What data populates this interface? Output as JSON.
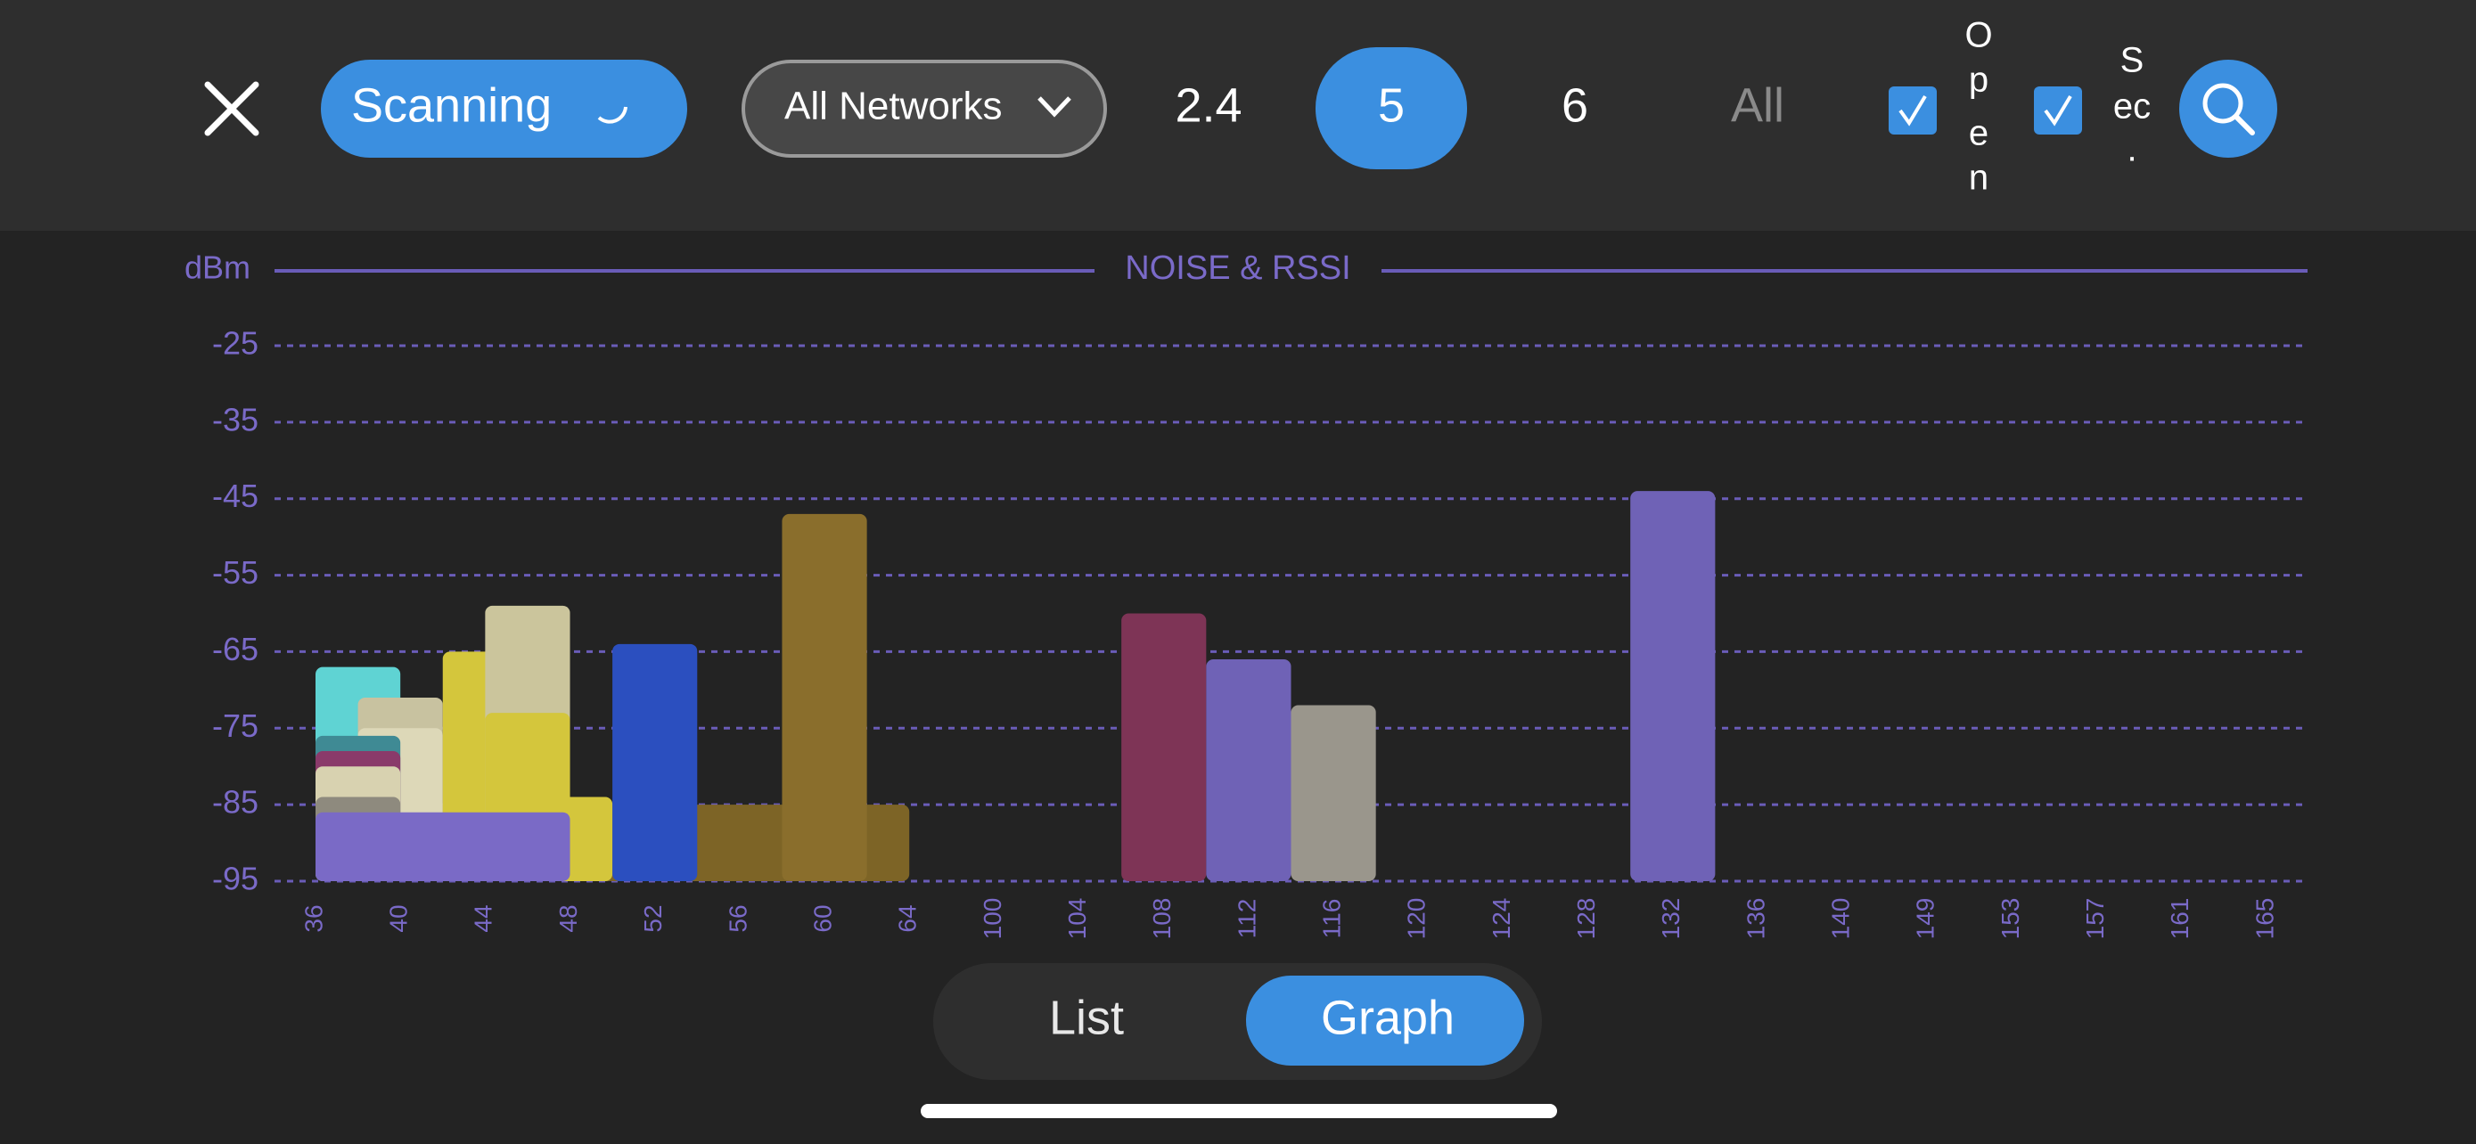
{
  "header": {
    "scan_button": "Scanning",
    "network_filter": "All Networks",
    "bands": [
      "2.4",
      "5",
      "6",
      "All"
    ],
    "open_label_lines": [
      "O",
      "p",
      "e",
      "n"
    ],
    "sec_label_lines": [
      "S",
      "ec",
      "."
    ]
  },
  "chart_data": {
    "type": "bar",
    "title": "NOISE & RSSI",
    "y_label": "dBm",
    "categories": [
      36,
      40,
      44,
      48,
      52,
      56,
      60,
      64,
      100,
      104,
      108,
      112,
      116,
      120,
      124,
      128,
      132,
      136,
      140,
      149,
      153,
      157,
      161,
      165
    ],
    "ylim": [
      -95,
      -25
    ],
    "yticks": [
      -25,
      -35,
      -45,
      -55,
      -65,
      -75,
      -85,
      -95
    ],
    "grid": true,
    "series": [
      {
        "color": "#7d6426",
        "start": 36,
        "end": 64,
        "value": -85
      },
      {
        "color": "#5fd3d3",
        "start": 36,
        "end": 40,
        "value": -67
      },
      {
        "color": "#c8c2a0",
        "start": 38,
        "end": 42,
        "value": -71
      },
      {
        "color": "#ddd8b8",
        "start": 38,
        "end": 42,
        "value": -75
      },
      {
        "color": "#3f8a94",
        "start": 36,
        "end": 40,
        "value": -76
      },
      {
        "color": "#8a3a6a",
        "start": 36,
        "end": 40,
        "value": -78
      },
      {
        "color": "#d8d2b0",
        "start": 36,
        "end": 40,
        "value": -80
      },
      {
        "color": "#8e8a7e",
        "start": 36,
        "end": 40,
        "value": -84
      },
      {
        "color": "#d4c63c",
        "start": 42,
        "end": 46,
        "value": -65
      },
      {
        "color": "#cbc59c",
        "start": 44,
        "end": 48,
        "value": -59
      },
      {
        "color": "#d4c63c",
        "start": 44,
        "end": 48,
        "value": -73
      },
      {
        "color": "#d4c63c",
        "start": 46,
        "end": 50,
        "value": -84
      },
      {
        "color": "#2b4fbf",
        "start": 50,
        "end": 54,
        "value": -64
      },
      {
        "color": "#8a6e2c",
        "start": 58,
        "end": 62,
        "value": -47
      },
      {
        "color": "#7a6ac6",
        "start": 36,
        "end": 48,
        "value": -86
      },
      {
        "color": "#7e3456",
        "start": 106,
        "end": 110,
        "value": -60
      },
      {
        "color": "#6f62b6",
        "start": 110,
        "end": 114,
        "value": -66
      },
      {
        "color": "#9a968c",
        "start": 114,
        "end": 118,
        "value": -72
      },
      {
        "color": "#6f62b6",
        "start": 130,
        "end": 134,
        "value": -44
      }
    ]
  },
  "footer": {
    "tabs": [
      "List",
      "Graph"
    ]
  }
}
